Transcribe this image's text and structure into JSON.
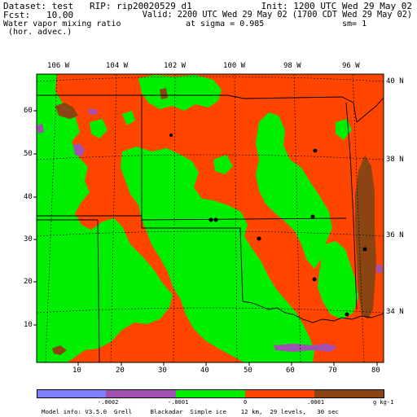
{
  "header": {
    "line1_left": "Dataset: test   RIP: rip20020529 d1",
    "line1_right": "Init: 1200 UTC Wed 29 May 02",
    "line2_left": "Fcst:   10.00",
    "line2_right": "Valid: 2200 UTC Wed 29 May 02 (1700 CDT Wed 29 May 02)",
    "line3_left": "Water vapor mixing ratio",
    "line3_mid": "at sigma = 0.985",
    "line3_right": "sm= 1",
    "line4_left": "(hor. advec.)"
  },
  "map": {
    "lon_labels": [
      "106 W",
      "104 W",
      "102 W",
      "100 W",
      "98 W",
      "96 W"
    ],
    "lat_labels": [
      "40 N",
      "38 N",
      "36 N",
      "34 N"
    ],
    "grid_y_labels": [
      "60",
      "50",
      "40",
      "30",
      "20",
      "10"
    ],
    "grid_x_labels": [
      "10",
      "20",
      "30",
      "40",
      "50",
      "60",
      "70",
      "80"
    ]
  },
  "legend": {
    "colors": [
      "#8080ff",
      "#a050b0",
      "#00ee00",
      "#ff4500",
      "#8b4513"
    ],
    "tick_labels": [
      "-.0002",
      "-.0001",
      "0",
      ".0001"
    ],
    "units": "g kg-1"
  },
  "footer": {
    "model_info": "Model info: V3.5.0  Grell     Blackadar  Simple ice    12 km,  29 levels,   30 sec"
  },
  "palette": {
    "green": "#00ee00",
    "orange": "#ff4500",
    "brown": "#8b4513",
    "purple": "#a050b0",
    "blue": "#8080ff"
  }
}
